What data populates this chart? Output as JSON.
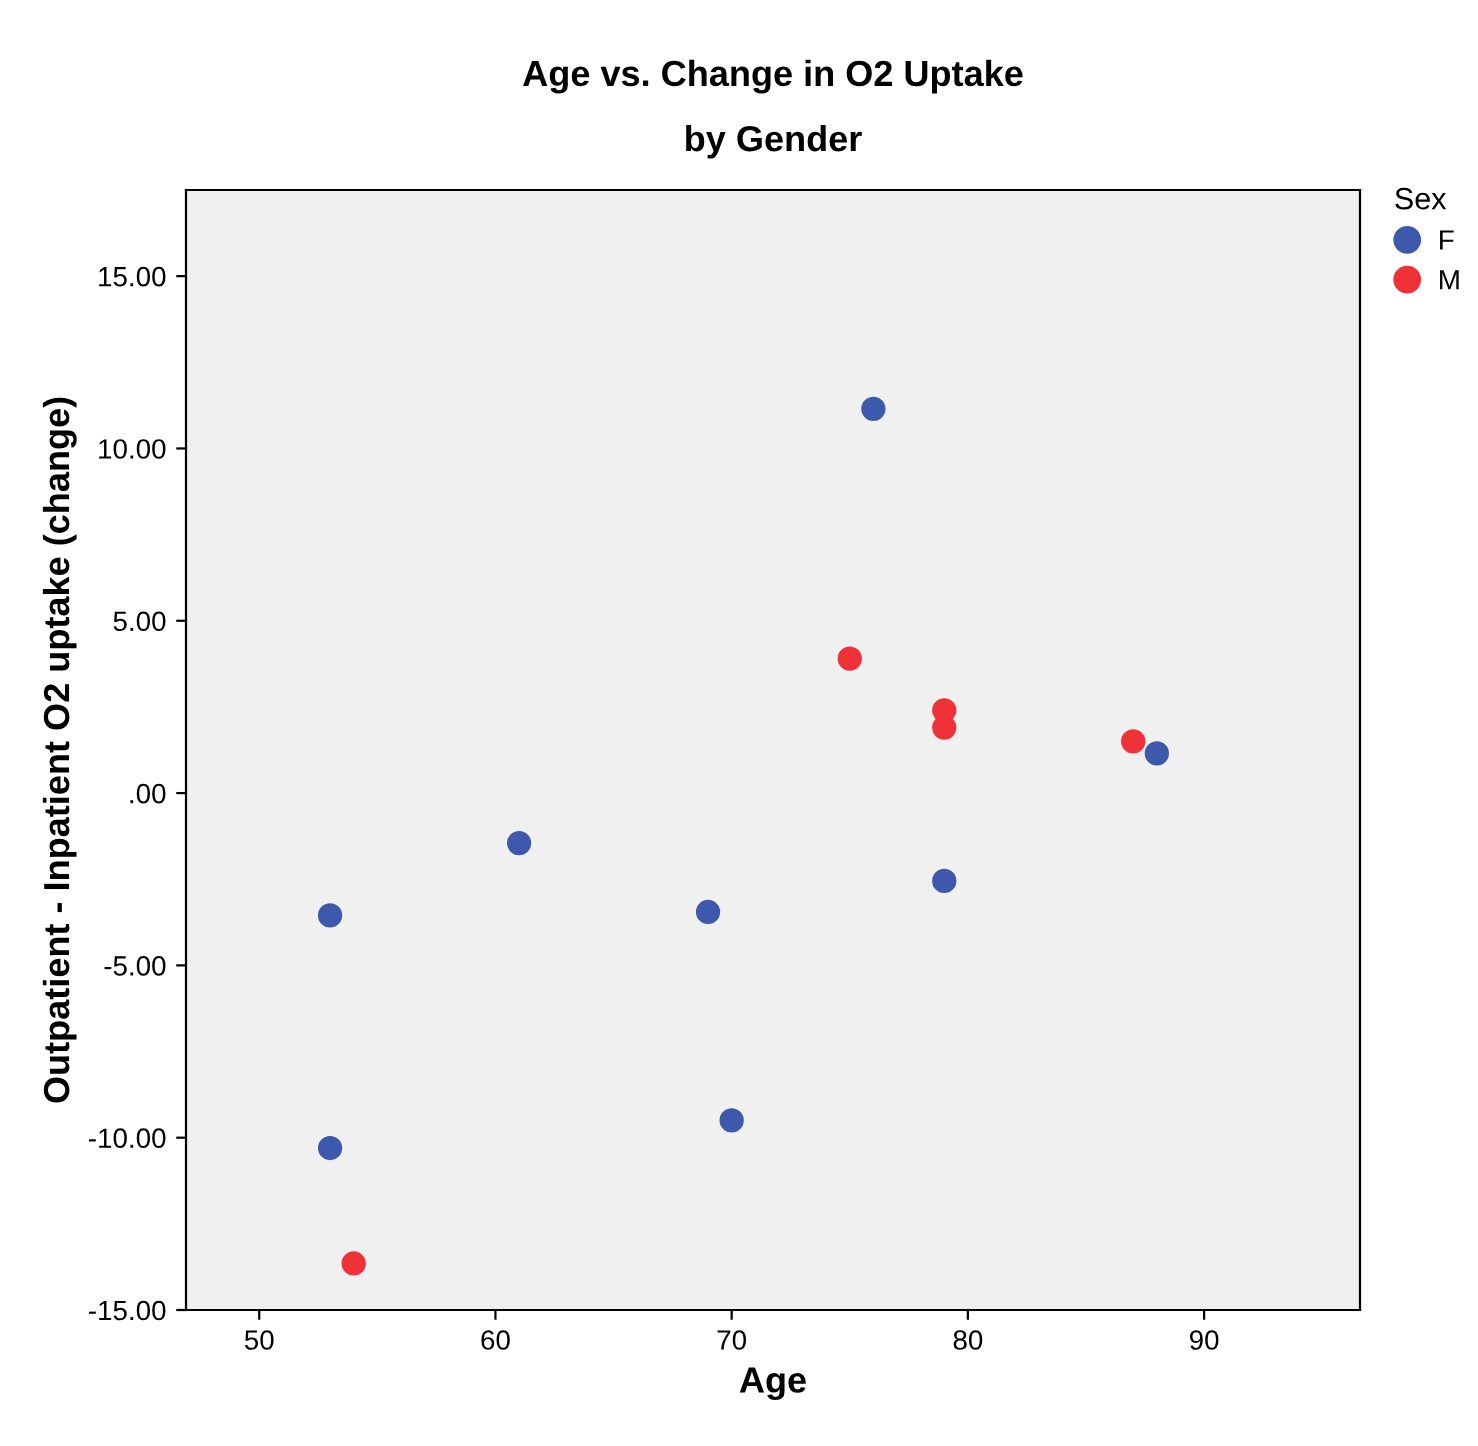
{
  "chart_data": {
    "type": "scatter",
    "title": "Age vs. Change in O2 Uptake\nby Gender",
    "xlabel": "Age",
    "ylabel": "Outpatient - Inpatient O2 uptake (change)",
    "legend_title": "Sex",
    "legend": "top right",
    "marker": "circle",
    "grid": false,
    "xlim": [
      46.9,
      96.6
    ],
    "xticks": [
      50,
      60,
      70,
      80,
      90
    ],
    "ylim": [
      -15,
      17.5
    ],
    "yticks": [
      {
        "value": -15,
        "label": "-15.00"
      },
      {
        "value": -10,
        "label": "-10.00"
      },
      {
        "value": -5,
        "label": "-5.00"
      },
      {
        "value": 0,
        "label": ".00"
      },
      {
        "value": 5,
        "label": "5.00"
      },
      {
        "value": 10,
        "label": "10.00"
      },
      {
        "value": 15,
        "label": "15.00"
      }
    ],
    "series": [
      {
        "name": "F",
        "color": "#3e58ac",
        "x": [
          53,
          53,
          61,
          69,
          70,
          76,
          79,
          88
        ],
        "values": [
          -3.55,
          -10.3,
          -1.45,
          -3.45,
          -9.5,
          11.15,
          -2.55,
          1.15
        ]
      },
      {
        "name": "M",
        "color": "#ee3237",
        "x": [
          54,
          75,
          79,
          79,
          87
        ],
        "values": [
          -13.65,
          3.9,
          2.4,
          1.9,
          1.5
        ]
      }
    ]
  }
}
